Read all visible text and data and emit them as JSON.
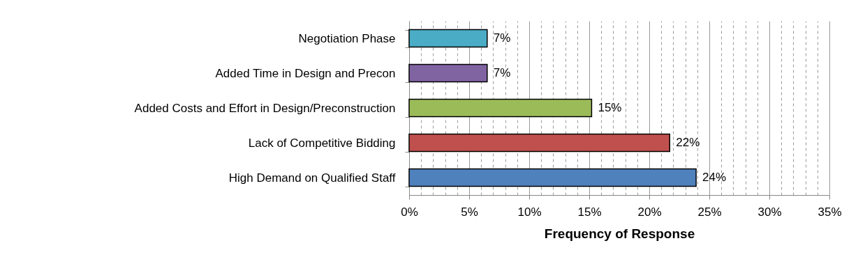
{
  "chart_data": {
    "type": "bar",
    "orientation": "horizontal",
    "xlabel": "Frequency of Response",
    "categories": [
      "Negotiation Phase",
      "Added Time in Design and Precon",
      "Added Costs and Effort in Design/Preconstruction",
      "Lack of Competitive Bidding",
      "High Demand on Qualified Staff"
    ],
    "values": [
      6.5,
      6.5,
      15.2,
      21.7,
      23.9
    ],
    "colors": [
      "#4bacc6",
      "#8064a2",
      "#9bbb59",
      "#c0504d",
      "#4f81bd"
    ],
    "value_labels": [
      "7%",
      "7%",
      "15%",
      "22%",
      "24%"
    ],
    "xlim": [
      0,
      35
    ],
    "xticks": [
      {
        "value": 0,
        "label": "0%"
      },
      {
        "value": 1,
        "label": null
      },
      {
        "value": 2,
        "label": null
      },
      {
        "value": 3,
        "label": null
      },
      {
        "value": 4,
        "label": null
      },
      {
        "value": 5,
        "label": "5%"
      },
      {
        "value": 6,
        "label": null
      },
      {
        "value": 7,
        "label": null
      },
      {
        "value": 8,
        "label": null
      },
      {
        "value": 9,
        "label": null
      },
      {
        "value": 10,
        "label": "10%"
      },
      {
        "value": 11,
        "label": null
      },
      {
        "value": 12,
        "label": null
      },
      {
        "value": 13,
        "label": null
      },
      {
        "value": 14,
        "label": null
      },
      {
        "value": 15,
        "label": "15%"
      },
      {
        "value": 16,
        "label": null
      },
      {
        "value": 17,
        "label": null
      },
      {
        "value": 18,
        "label": null
      },
      {
        "value": 19,
        "label": null
      },
      {
        "value": 20,
        "label": "20%"
      },
      {
        "value": 21,
        "label": null
      },
      {
        "value": 22,
        "label": null
      },
      {
        "value": 23,
        "label": null
      },
      {
        "value": 24,
        "label": null
      },
      {
        "value": 25,
        "label": "25%"
      },
      {
        "value": 26,
        "label": null
      },
      {
        "value": 27,
        "label": null
      },
      {
        "value": 28,
        "label": null
      },
      {
        "value": 29,
        "label": null
      },
      {
        "value": 30,
        "label": "30%"
      },
      {
        "value": 31,
        "label": null
      },
      {
        "value": 32,
        "label": null
      },
      {
        "value": 33,
        "label": null
      },
      {
        "value": 34,
        "label": null
      },
      {
        "value": 35,
        "label": "35%"
      }
    ],
    "grid": "x"
  }
}
